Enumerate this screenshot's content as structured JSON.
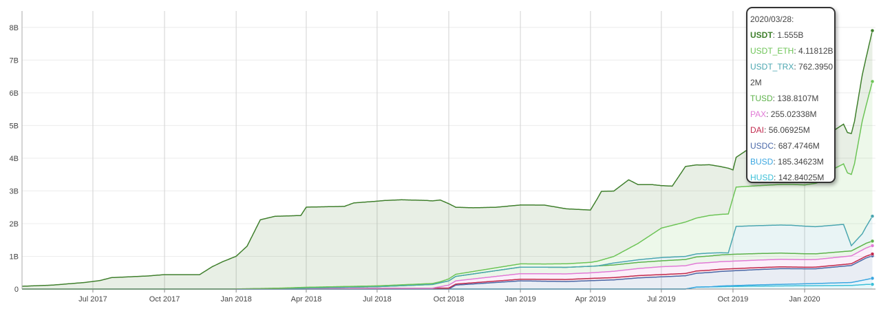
{
  "chart_data": {
    "type": "area",
    "x_axis": {
      "ticks": [
        "Jul 2017",
        "Oct 2017",
        "Jan 2018",
        "Apr 2018",
        "Jul 2018",
        "Oct 2018",
        "Jan 2019",
        "Apr 2019",
        "Jul 2019",
        "Oct 2019",
        "Jan 2020"
      ],
      "range": [
        "2017-04-01",
        "2020-04-01"
      ]
    },
    "y_axis": {
      "ticks": [
        "0",
        "1B",
        "2B",
        "3B",
        "4B",
        "5B",
        "6B",
        "7B",
        "8B"
      ],
      "ylim": [
        0,
        8500000000.0
      ]
    },
    "grid": "vertical",
    "stacked": true,
    "series": [
      {
        "name": "HUSD",
        "color": "#3cc0d8",
        "data": [
          [
            "2017-04-01",
            0
          ],
          [
            "2019-08-01",
            0
          ],
          [
            "2019-08-15",
            60000000.0
          ],
          [
            "2019-11-01",
            90000000.0
          ],
          [
            "2020-01-01",
            100000000.0
          ],
          [
            "2020-03-01",
            110000000.0
          ],
          [
            "2020-03-20",
            140000000.0
          ],
          [
            "2020-03-28",
            143000000.0
          ]
        ]
      },
      {
        "name": "BUSD",
        "color": "#3aa6e0",
        "data": [
          [
            "2017-04-01",
            0
          ],
          [
            "2019-09-01",
            0
          ],
          [
            "2019-09-15",
            20000000.0
          ],
          [
            "2020-01-01",
            60000000.0
          ],
          [
            "2020-03-01",
            90000000.0
          ],
          [
            "2020-03-20",
            150000000.0
          ],
          [
            "2020-03-28",
            185000000.0
          ]
        ]
      },
      {
        "name": "USDC",
        "color": "#4a68a8",
        "data": [
          [
            "2017-04-01",
            0
          ],
          [
            "2018-10-01",
            0
          ],
          [
            "2018-10-10",
            120000000.0
          ],
          [
            "2019-01-01",
            250000000.0
          ],
          [
            "2019-03-01",
            230000000.0
          ],
          [
            "2019-05-01",
            280000000.0
          ],
          [
            "2019-06-01",
            340000000.0
          ],
          [
            "2019-09-01",
            440000000.0
          ],
          [
            "2019-12-01",
            480000000.0
          ],
          [
            "2020-01-15",
            450000000.0
          ],
          [
            "2020-03-01",
            520000000.0
          ],
          [
            "2020-03-20",
            660000000.0
          ],
          [
            "2020-03-28",
            687000000.0
          ]
        ]
      },
      {
        "name": "DAI",
        "color": "#c22a4e",
        "data": [
          [
            "2017-04-01",
            0
          ],
          [
            "2017-12-20",
            0
          ],
          [
            "2018-01-10",
            5000000.0
          ],
          [
            "2018-10-01",
            30000000.0
          ],
          [
            "2019-01-01",
            50000000.0
          ],
          [
            "2019-04-01",
            70000000.0
          ],
          [
            "2019-09-01",
            70000000.0
          ],
          [
            "2020-01-01",
            50000000.0
          ],
          [
            "2020-03-28",
            56000000.0
          ]
        ]
      },
      {
        "name": "PAX",
        "color": "#e17ad6",
        "data": [
          [
            "2017-04-01",
            0
          ],
          [
            "2018-09-10",
            0
          ],
          [
            "2018-10-01",
            90000000.0
          ],
          [
            "2019-01-01",
            170000000.0
          ],
          [
            "2019-04-01",
            170000000.0
          ],
          [
            "2019-07-01",
            240000000.0
          ],
          [
            "2019-10-01",
            230000000.0
          ],
          [
            "2020-01-01",
            230000000.0
          ],
          [
            "2020-03-01",
            240000000.0
          ],
          [
            "2020-03-28",
            255000000.0
          ]
        ]
      },
      {
        "name": "TUSD",
        "color": "#5db24a",
        "data": [
          [
            "2017-04-01",
            0
          ],
          [
            "2018-03-01",
            0
          ],
          [
            "2018-04-01",
            20000000.0
          ],
          [
            "2018-07-01",
            50000000.0
          ],
          [
            "2018-10-01",
            130000000.0
          ],
          [
            "2019-01-01",
            200000000.0
          ],
          [
            "2019-04-01",
            200000000.0
          ],
          [
            "2019-07-01",
            180000000.0
          ],
          [
            "2019-10-01",
            210000000.0
          ],
          [
            "2020-01-01",
            180000000.0
          ],
          [
            "2020-03-28",
            139000000.0
          ]
        ]
      },
      {
        "name": "USDT_TRX",
        "color": "#4aa6b0",
        "data": [
          [
            "2017-04-01",
            0
          ],
          [
            "2019-04-10",
            0
          ],
          [
            "2019-05-01",
            60000000.0
          ],
          [
            "2019-07-01",
            100000000.0
          ],
          [
            "2019-09-01",
            90000000.0
          ],
          [
            "2019-09-25",
            50000000.0
          ],
          [
            "2019-10-05",
            850000000.0
          ],
          [
            "2019-12-15",
            860000000.0
          ],
          [
            "2020-01-15",
            830000000.0
          ],
          [
            "2020-02-20",
            830000000.0
          ],
          [
            "2020-03-01",
            160000000.0
          ],
          [
            "2020-03-15",
            350000000.0
          ],
          [
            "2020-03-28",
            762000000.0
          ]
        ]
      },
      {
        "name": "USDT_ETH",
        "color": "#6cc456",
        "data": [
          [
            "2017-04-01",
            0
          ],
          [
            "2018-01-01",
            0
          ],
          [
            "2018-03-01",
            20000000.0
          ],
          [
            "2018-09-20",
            30000000.0
          ],
          [
            "2018-10-01",
            60000000.0
          ],
          [
            "2019-01-01",
            100000000.0
          ],
          [
            "2019-02-01",
            100000000.0
          ],
          [
            "2019-04-01",
            120000000.0
          ],
          [
            "2019-05-01",
            200000000.0
          ],
          [
            "2019-06-01",
            500000000.0
          ],
          [
            "2019-07-01",
            900000000.0
          ],
          [
            "2019-08-01",
            1050000000.0
          ],
          [
            "2019-09-01",
            1150000000.0
          ],
          [
            "2019-10-01",
            1200000000.0
          ],
          [
            "2019-11-01",
            1220000000.0
          ],
          [
            "2019-12-01",
            1240000000.0
          ],
          [
            "2020-01-01",
            1260000000.0
          ],
          [
            "2020-01-20",
            1350000000.0
          ],
          [
            "2020-02-10",
            1750000000.0
          ],
          [
            "2020-02-25",
            1900000000.0
          ],
          [
            "2020-03-05",
            2400000000.0
          ],
          [
            "2020-03-15",
            3450000000.0
          ],
          [
            "2020-03-28",
            4118000000.0
          ]
        ]
      },
      {
        "name": "USDT",
        "color": "#3f7f2c",
        "data": [
          [
            "2017-04-01",
            85000000.0
          ],
          [
            "2017-05-10",
            120000000.0
          ],
          [
            "2017-06-20",
            200000000.0
          ],
          [
            "2017-07-10",
            260000000.0
          ],
          [
            "2017-07-25",
            350000000.0
          ],
          [
            "2017-09-10",
            400000000.0
          ],
          [
            "2017-09-30",
            440000000.0
          ],
          [
            "2017-11-15",
            440000000.0
          ],
          [
            "2017-12-01",
            680000000.0
          ],
          [
            "2017-12-15",
            840000000.0
          ],
          [
            "2018-01-01",
            1000000000.0
          ],
          [
            "2018-01-15",
            1300000000.0
          ],
          [
            "2018-02-01",
            2100000000.0
          ],
          [
            "2018-02-20",
            2200000000.0
          ],
          [
            "2018-03-25",
            2200000000.0
          ],
          [
            "2018-04-01",
            2450000000.0
          ],
          [
            "2018-05-20",
            2450000000.0
          ],
          [
            "2018-06-01",
            2550000000.0
          ],
          [
            "2018-07-10",
            2600000000.0
          ],
          [
            "2018-08-01",
            2600000000.0
          ],
          [
            "2018-09-01",
            2550000000.0
          ],
          [
            "2018-09-20",
            2500000000.0
          ],
          [
            "2018-10-01",
            2300000000.0
          ],
          [
            "2018-10-10",
            2050000000.0
          ],
          [
            "2018-11-01",
            1950000000.0
          ],
          [
            "2018-12-01",
            1850000000.0
          ],
          [
            "2019-01-01",
            1800000000.0
          ],
          [
            "2019-02-01",
            1800000000.0
          ],
          [
            "2019-03-01",
            1680000000.0
          ],
          [
            "2019-04-01",
            1600000000.0
          ],
          [
            "2019-04-15",
            2100000000.0
          ],
          [
            "2019-05-01",
            2000000000.0
          ],
          [
            "2019-05-20",
            2100000000.0
          ],
          [
            "2019-06-01",
            1800000000.0
          ],
          [
            "2019-06-20",
            1500000000.0
          ],
          [
            "2019-07-01",
            1300000000.0
          ],
          [
            "2019-07-15",
            1200000000.0
          ],
          [
            "2019-08-01",
            1700000000.0
          ],
          [
            "2019-08-20",
            1600000000.0
          ],
          [
            "2019-09-01",
            1550000000.0
          ],
          [
            "2019-09-25",
            1400000000.0
          ],
          [
            "2019-10-01",
            850000000.0
          ],
          [
            "2019-11-01",
            1300000000.0
          ],
          [
            "2019-11-15",
            1100000000.0
          ],
          [
            "2019-12-01",
            1100000000.0
          ],
          [
            "2020-01-01",
            1100000000.0
          ],
          [
            "2020-02-01",
            1150000000.0
          ],
          [
            "2020-03-01",
            1250000000.0
          ],
          [
            "2020-03-28",
            1555000000.0
          ]
        ]
      }
    ]
  },
  "tooltip": {
    "date": "2020/03/28:",
    "entries": [
      {
        "name": "USDT",
        "value": "1.555B",
        "color": "#3f7f2c",
        "bold": true
      },
      {
        "name": "USDT_ETH",
        "value": "4.11812B",
        "color": "#6cc456",
        "bold": false
      },
      {
        "name": "USDT_TRX",
        "value": "762.3950",
        "color": "#4aa6b0",
        "bold": false
      },
      {
        "name": "",
        "value": "2M",
        "color": "#444444",
        "bold": false
      },
      {
        "name": "TUSD",
        "value": "138.8107M",
        "color": "#5db24a",
        "bold": false
      },
      {
        "name": "PAX",
        "value": "255.02338M",
        "color": "#e17ad6",
        "bold": false
      },
      {
        "name": "DAI",
        "value": "56.06925M",
        "color": "#c22a4e",
        "bold": false
      },
      {
        "name": "USDC",
        "value": "687.4746M",
        "color": "#4a68a8",
        "bold": false
      },
      {
        "name": "BUSD",
        "value": "185.34623M",
        "color": "#3aa6e0",
        "bold": false
      },
      {
        "name": "HUSD",
        "value": "142.84025M",
        "color": "#3cc0d8",
        "bold": false
      }
    ]
  }
}
